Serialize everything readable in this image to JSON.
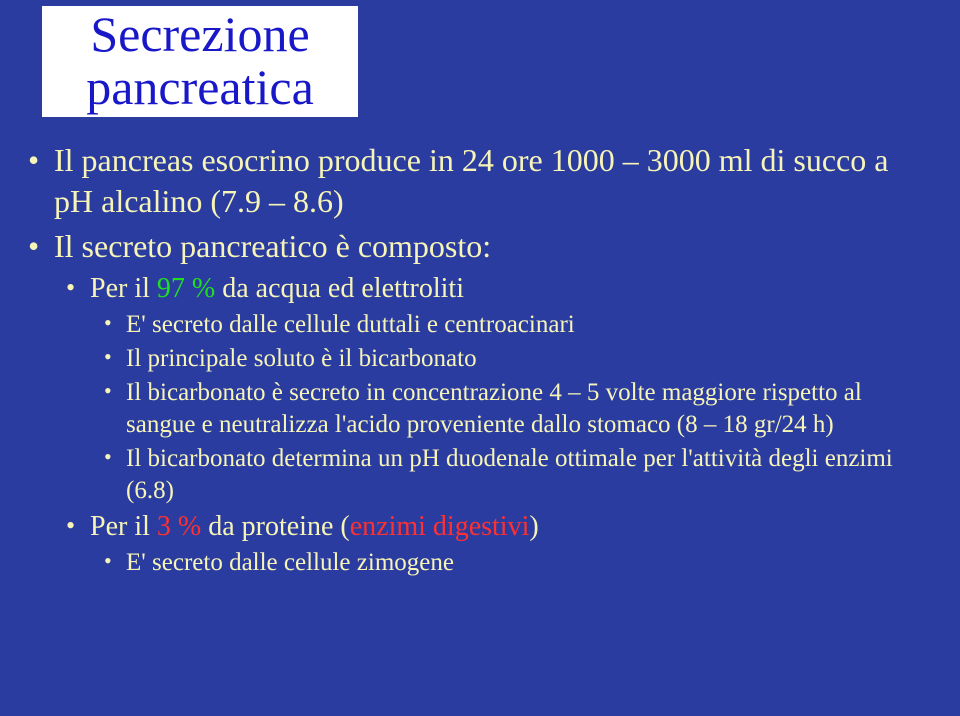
{
  "colors": {
    "slide_bg": "#2a3ca0",
    "title_bg": "#ffffff",
    "title_text": "#1818c8",
    "body_text": "#f7f4b8",
    "accent_green": "#1fe01f",
    "accent_red": "#ff3030"
  },
  "typography": {
    "title_fontsize_pt": 38,
    "level1_fontsize_pt": 24,
    "level2_fontsize_pt": 21,
    "level3_fontsize_pt": 19,
    "font_family": "Times New Roman"
  },
  "title": {
    "line1": "Secrezione",
    "line2": "pancreatica"
  },
  "bullets": {
    "l1_a": "Il pancreas esocrino produce in 24 ore 1000 – 3000 ml di succo a pH alcalino (7.9 – 8.6)",
    "l1_b": "Il secreto pancreatico è composto:",
    "l2_a_pre": "Per il ",
    "l2_a_green": "97 %",
    "l2_a_post": " da acqua ed elettroliti",
    "l3_a": "E' secreto dalle cellule duttali e centroacinari",
    "l3_b": "Il principale soluto è il bicarbonato",
    "l3_c": "Il bicarbonato è secreto in concentrazione 4 – 5 volte maggiore rispetto al sangue e neutralizza l'acido proveniente dallo stomaco (8 – 18 gr/24 h)",
    "l3_d": "Il bicarbonato determina un pH duodenale ottimale per l'attività degli enzimi (6.8)",
    "l2_b_pre": "Per il ",
    "l2_b_red": "3 %",
    "l2_b_mid": " da proteine (",
    "l2_b_red2": "enzimi digestivi",
    "l2_b_post": ")",
    "l3_e": "E' secreto dalle cellule zimogene"
  }
}
